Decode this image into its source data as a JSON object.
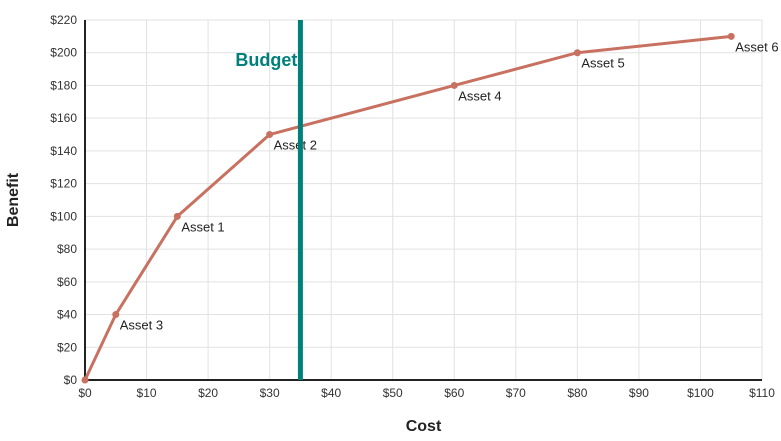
{
  "chart_data": {
    "type": "line",
    "xlabel": "Cost",
    "ylabel": "Benefit",
    "xlim": [
      0,
      110
    ],
    "ylim": [
      0,
      220
    ],
    "x_ticks": [
      "$0",
      "$10",
      "$20",
      "$30",
      "$40",
      "$50",
      "$60",
      "$70",
      "$80",
      "$90",
      "$100",
      "$110"
    ],
    "y_ticks": [
      "$0",
      "$20",
      "$40",
      "$60",
      "$80",
      "$100",
      "$120",
      "$140",
      "$160",
      "$180",
      "$200",
      "$220"
    ],
    "x_tick_values": [
      0,
      10,
      20,
      30,
      40,
      50,
      60,
      70,
      80,
      90,
      100,
      110
    ],
    "y_tick_values": [
      0,
      20,
      40,
      60,
      80,
      100,
      120,
      140,
      160,
      180,
      200,
      220
    ],
    "grid": true,
    "series": [
      {
        "color": "#c87161",
        "points": [
          {
            "x": 0,
            "y": 0,
            "label": ""
          },
          {
            "x": 5,
            "y": 40,
            "label": "Asset 3"
          },
          {
            "x": 15,
            "y": 100,
            "label": "Asset 1"
          },
          {
            "x": 30,
            "y": 150,
            "label": "Asset 2"
          },
          {
            "x": 60,
            "y": 180,
            "label": "Asset 4"
          },
          {
            "x": 80,
            "y": 200,
            "label": "Asset 5"
          },
          {
            "x": 105,
            "y": 210,
            "label": "Asset 6"
          }
        ]
      }
    ],
    "budget": {
      "label": "Budget",
      "x": 35,
      "color": "#00807a"
    }
  }
}
